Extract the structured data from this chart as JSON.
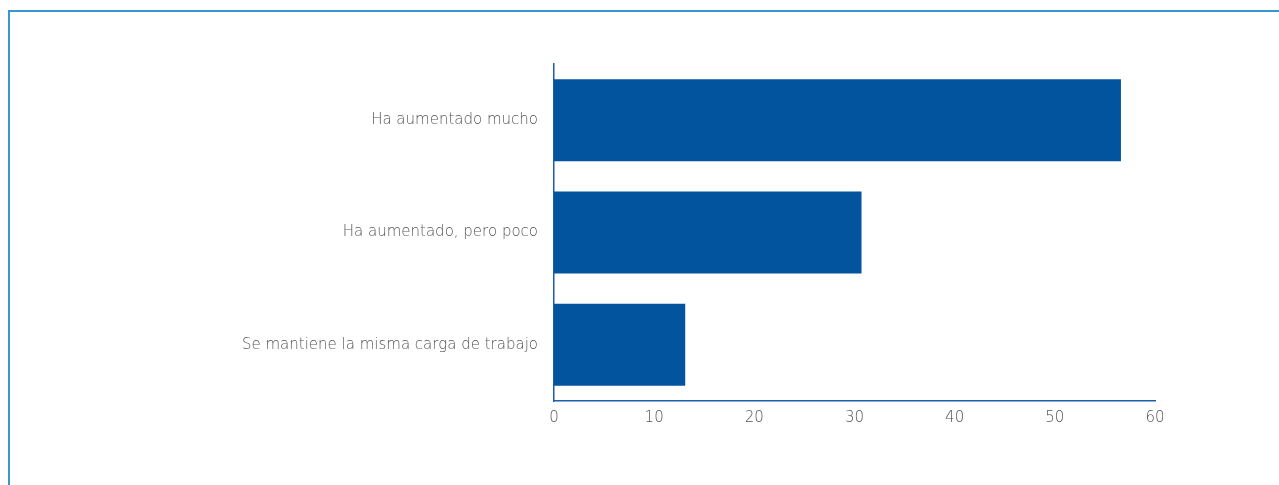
{
  "chart_data": {
    "type": "bar",
    "orientation": "horizontal",
    "categories": [
      "Ha aumentado mucho",
      "Ha aumentado, pero poco",
      "Se mantiene la misma carga de trabajo"
    ],
    "values": [
      56.6,
      30.7,
      13.1
    ],
    "color": "#02549e",
    "xlim": [
      0,
      60
    ],
    "xticks": [
      0,
      10,
      20,
      30,
      40,
      50,
      60
    ],
    "grid": false,
    "legend": false
  }
}
